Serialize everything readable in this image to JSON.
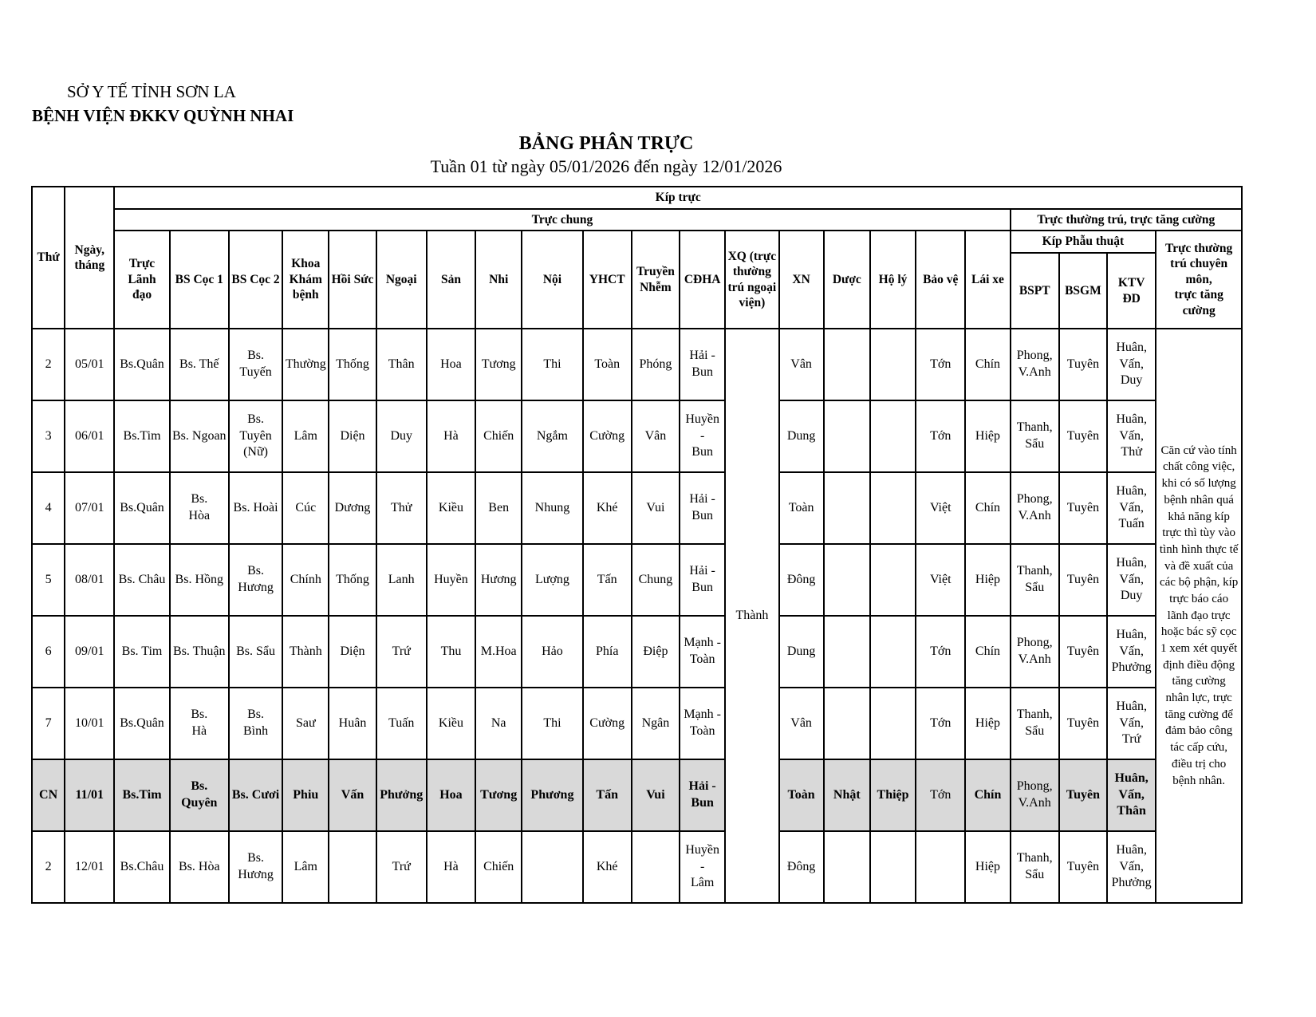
{
  "org": {
    "department": "SỞ Y TẾ TỈNH SƠN LA",
    "hospital": "BỆNH VIỆN ĐKKV QUỲNH NHAI"
  },
  "title": "BẢNG PHÂN TRỰC",
  "subtitle": "Tuần 01 từ ngày 05/01/2026 đến ngày 12/01/2026",
  "colors": {
    "sunday_row_bg": "#d9d9d9",
    "border": "#000000",
    "background": "#ffffff"
  },
  "table": {
    "headers": {
      "thu": "Thứ",
      "ngay_thang": "Ngày,\ntháng",
      "kip_truc": "Kíp trực",
      "truc_chung": "Trực chung",
      "truc_thuong_tru": "Trực thường trú, trực tăng cường",
      "kip_phau_thuat": "Kíp Phẫu thuật",
      "bspt": "BSPT",
      "bsgm": "BSGM",
      "ktv_dd": "KTV\nĐD",
      "truc_chuyen_mon": "Trực thường\ntrú chuyên\nmôn,\ntrực tăng\ncường",
      "columns": [
        "Trực\nLãnh đạo",
        "BS Cọc 1",
        "BS Cọc 2",
        "Khoa\nKhám\nbệnh",
        "Hồi Sức",
        "Ngoại",
        "Sản",
        "Nhi",
        "Nội",
        "YHCT",
        "Truyền\nNhễm",
        "CĐHA",
        "XQ (trực\nthường\ntrú ngoại\nviện)",
        "XN",
        "Dược",
        "Hộ lý",
        "Bảo vệ",
        "Lái xe"
      ]
    },
    "xq_merged": "Thành",
    "note": "Căn cứ vào tính chất công việc, khi có số lượng bệnh nhân quá khả năng kíp trực thì tùy vào tình hình thực tế và đề xuất của các bộ phận, kíp trực báo cáo lãnh đạo trực hoặc bác sỹ cọc 1 xem xét quyết định điều động tăng cường nhân lực, trực tăng cường để đảm bảo công tác cấp cứu, điều trị cho bệnh nhân.",
    "rows": [
      {
        "thu": "2",
        "ngay": "05/01",
        "highlight": false,
        "normal_cols": [],
        "cells": [
          "Bs.Quân",
          "Bs. Thế",
          "Bs. Tuyến",
          "Thường",
          "Thống",
          "Thân",
          "Hoa",
          "Tương",
          "Thi",
          "Toàn",
          "Phóng",
          "Hải -\nBun",
          "Vân",
          "",
          "",
          "Tớn",
          "Chín",
          "Phong,\nV.Anh",
          "Tuyên",
          "Huân,\nVấn,\nDuy"
        ]
      },
      {
        "thu": "3",
        "ngay": "06/01",
        "highlight": false,
        "normal_cols": [],
        "cells": [
          "Bs.Tim",
          "Bs. Ngoan",
          "Bs. Tuyên\n(Nữ)",
          "Lâm",
          "Diện",
          "Duy",
          "Hà",
          "Chiến",
          "Ngắm",
          "Cường",
          "Vân",
          "Huyền -\nBun",
          "Dung",
          "",
          "",
          "Tớn",
          "Hiệp",
          "Thanh,\nSẩu",
          "Tuyên",
          "Huân,\nVấn,\nThử"
        ]
      },
      {
        "thu": "4",
        "ngay": "07/01",
        "highlight": false,
        "normal_cols": [],
        "cells": [
          "Bs.Quân",
          "Bs.\nHòa",
          "Bs. Hoài",
          "Cúc",
          "Dương",
          "Thử",
          "Kiều",
          "Ben",
          "Nhung",
          "Khé",
          "Vui",
          "Hải -\nBun",
          "Toàn",
          "",
          "",
          "Việt",
          "Chín",
          "Phong,\nV.Anh",
          "Tuyên",
          "Huân,\nVấn,\nTuấn"
        ]
      },
      {
        "thu": "5",
        "ngay": "08/01",
        "highlight": false,
        "normal_cols": [],
        "cells": [
          "Bs. Châu",
          "Bs. Hồng",
          "Bs.\nHương",
          "Chính",
          "Thống",
          "Lanh",
          "Huyền",
          "Hương",
          "Lượng",
          "Tấn",
          "Chung",
          "Hải -\nBun",
          "Đông",
          "",
          "",
          "Việt",
          "Hiệp",
          "Thanh,\nSẩu",
          "Tuyên",
          "Huân,\nVấn,\nDuy"
        ]
      },
      {
        "thu": "6",
        "ngay": "09/01",
        "highlight": false,
        "normal_cols": [],
        "cells": [
          "Bs. Tim",
          "Bs. Thuận",
          "Bs. Sẩu",
          "Thành",
          "Diện",
          "Trứ",
          "Thu",
          "M.Hoa",
          "Hảo",
          "Phía",
          "Điệp",
          "Mạnh -\nToàn",
          "Dung",
          "",
          "",
          "Tớn",
          "Chín",
          "Phong,\nV.Anh",
          "Tuyên",
          "Huân,\nVấn,\nPhưởng"
        ]
      },
      {
        "thu": "7",
        "ngay": "10/01",
        "highlight": false,
        "normal_cols": [],
        "cells": [
          "Bs.Quân",
          "Bs.\nHà",
          "Bs.\nBình",
          "Saư",
          "Huân",
          "Tuấn",
          "Kiều",
          "Na",
          "Thi",
          "Cường",
          "Ngân",
          "Mạnh -\nToàn",
          "Vân",
          "",
          "",
          "Tớn",
          "Hiệp",
          "Thanh,\nSẩu",
          "Tuyên",
          "Huân,\nVấn,\nTrứ"
        ]
      },
      {
        "thu": "CN",
        "ngay": "11/01",
        "highlight": true,
        "normal_cols": [
          15,
          17
        ],
        "cells": [
          "Bs.Tim",
          "Bs.\nQuyên",
          "Bs. Cươi",
          "Phiu",
          "Vấn",
          "Phưởng",
          "Hoa",
          "Tương",
          "Phương",
          "Tấn",
          "Vui",
          "Hải -\nBun",
          "Toàn",
          "Nhật",
          "Thiệp",
          "Tớn",
          "Chín",
          "Phong,\nV.Anh",
          "Tuyên",
          "Huân,\nVấn,\nThân"
        ]
      },
      {
        "thu": "2",
        "ngay": "12/01",
        "highlight": false,
        "normal_cols": [],
        "cells": [
          "Bs.Châu",
          "Bs. Hòa",
          "Bs.\nHương",
          "Lâm",
          "",
          "Trứ",
          "Hà",
          "Chiến",
          "",
          "Khé",
          "",
          "Huyền -\nLâm",
          "Đông",
          "",
          "",
          "",
          "Hiệp",
          "Thanh,\nSẩu",
          "Tuyên",
          "Huân,\nVấn,\nPhưởng"
        ]
      }
    ]
  }
}
